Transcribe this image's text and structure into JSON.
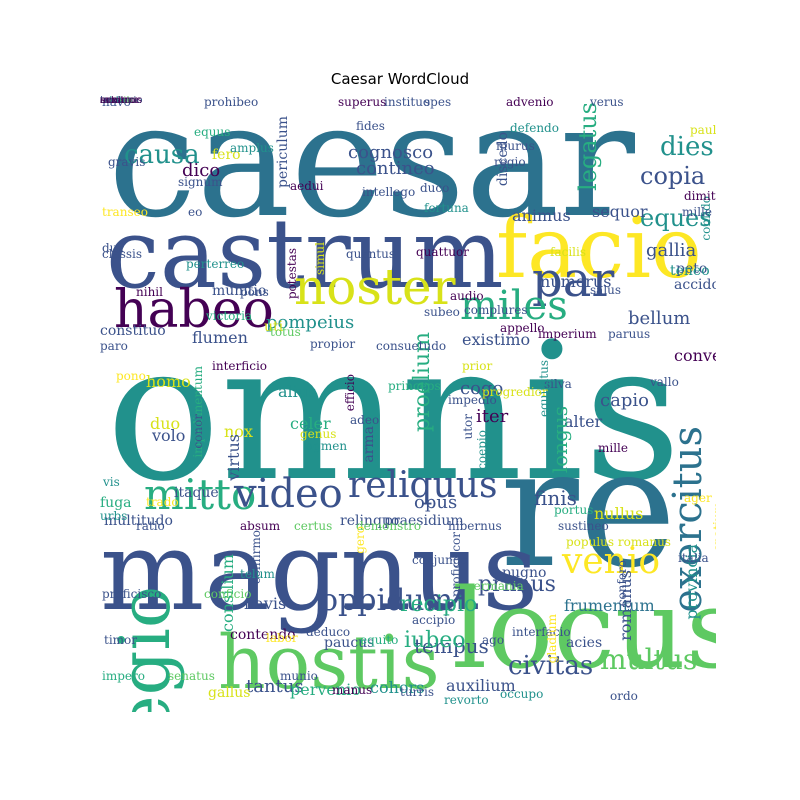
{
  "figure": {
    "title": "Caesar WordCloud"
  },
  "colors": {
    "c1": "#440154",
    "c2": "#3b528b",
    "c3": "#2c728e",
    "c4": "#21918c",
    "c5": "#27ad81",
    "c6": "#5ec962",
    "c7": "#d8e219",
    "c8": "#fde725"
  },
  "words": [
    {
      "text": "caesar",
      "color": "c3"
    },
    {
      "text": "omnis",
      "color": "c4"
    },
    {
      "text": "re",
      "color": "c3"
    },
    {
      "text": "magnus",
      "color": "c2"
    },
    {
      "text": "locus",
      "color": "c6"
    },
    {
      "text": "castrum",
      "color": "c2"
    },
    {
      "text": "facio",
      "color": "c8"
    },
    {
      "text": "hostis",
      "color": "c6"
    },
    {
      "text": "noster",
      "color": "c7"
    },
    {
      "text": "habeo",
      "color": "c1"
    },
    {
      "text": "par",
      "color": "c2"
    },
    {
      "text": "miles",
      "color": "c5"
    },
    {
      "text": "legio",
      "color": "c5"
    },
    {
      "text": "mitto",
      "color": "c5"
    },
    {
      "text": "video",
      "color": "c2"
    },
    {
      "text": "reliquus",
      "color": "c2"
    },
    {
      "text": "venio",
      "color": "c8"
    },
    {
      "text": "exercitus",
      "color": "c3"
    },
    {
      "text": "oppidum",
      "color": "c2"
    },
    {
      "text": "causa",
      "color": "c4"
    },
    {
      "text": "dies",
      "color": "c4"
    },
    {
      "text": "copia",
      "color": "c2"
    },
    {
      "text": "eques",
      "color": "c4"
    },
    {
      "text": "multus",
      "color": "c6"
    },
    {
      "text": "civitas",
      "color": "c2"
    },
    {
      "text": "legatus",
      "color": "c5"
    },
    {
      "text": "cognosco",
      "color": "c2"
    },
    {
      "text": "contineo",
      "color": "c2"
    },
    {
      "text": "gallia",
      "color": "c2"
    },
    {
      "text": "pompeius",
      "color": "c4"
    },
    {
      "text": "bellum",
      "color": "c2"
    },
    {
      "text": "iter",
      "color": "c1"
    },
    {
      "text": "opus",
      "color": "c2"
    },
    {
      "text": "cogo",
      "color": "c2"
    },
    {
      "text": "finis",
      "color": "c2"
    },
    {
      "text": "tempus",
      "color": "c2"
    },
    {
      "text": "primus",
      "color": "c2"
    },
    {
      "text": "recipio",
      "color": "c5"
    },
    {
      "text": "iubeo",
      "color": "c5"
    },
    {
      "text": "tantus",
      "color": "c2"
    },
    {
      "text": "auxilium",
      "color": "c2"
    },
    {
      "text": "cohors",
      "color": "c4"
    },
    {
      "text": "pervenio",
      "color": "c5"
    },
    {
      "text": "flumen",
      "color": "c2"
    },
    {
      "text": "homo",
      "color": "c7"
    },
    {
      "text": "duo",
      "color": "c7"
    },
    {
      "text": "volo",
      "color": "c2"
    },
    {
      "text": "alius",
      "color": "c4"
    },
    {
      "text": "nox",
      "color": "c7"
    },
    {
      "text": "celer",
      "color": "c5"
    },
    {
      "text": "alter",
      "color": "c2"
    },
    {
      "text": "capio",
      "color": "c2"
    },
    {
      "text": "nullus",
      "color": "c7"
    },
    {
      "text": "longus",
      "color": "c5"
    },
    {
      "text": "proelium",
      "color": "c5"
    },
    {
      "text": "existimo",
      "color": "c2"
    },
    {
      "text": "numerus",
      "color": "c2"
    },
    {
      "text": "animus",
      "color": "c2"
    },
    {
      "text": "sequor",
      "color": "c2"
    },
    {
      "text": "dico",
      "color": "c1"
    },
    {
      "text": "fero",
      "color": "c7"
    },
    {
      "text": "uti",
      "color": "c7"
    },
    {
      "text": "munitio",
      "color": "c2"
    },
    {
      "text": "constituo",
      "color": "c2"
    },
    {
      "text": "periculum",
      "color": "c2"
    },
    {
      "text": "discedo",
      "color": "c2"
    },
    {
      "text": "peto",
      "color": "c2"
    },
    {
      "text": "accido",
      "color": "c2"
    },
    {
      "text": "navis",
      "color": "c2"
    },
    {
      "text": "contendo",
      "color": "c1"
    },
    {
      "text": "paucus",
      "color": "c2"
    },
    {
      "text": "acies",
      "color": "c2"
    },
    {
      "text": "frumentum",
      "color": "c3"
    },
    {
      "text": "provincia",
      "color": "c4"
    },
    {
      "text": "romanus",
      "color": "c2"
    },
    {
      "text": "consilium",
      "color": "c5"
    },
    {
      "text": "gallus",
      "color": "c7"
    },
    {
      "text": "fuga",
      "color": "c5"
    },
    {
      "text": "multitudo",
      "color": "c2"
    },
    {
      "text": "relinquo",
      "color": "c2"
    },
    {
      "text": "praesidium",
      "color": "c2"
    },
    {
      "text": "pugno",
      "color": "c2"
    },
    {
      "text": "itaque",
      "color": "c2"
    },
    {
      "text": "virtus",
      "color": "c2"
    },
    {
      "text": "arma",
      "color": "c2"
    },
    {
      "text": "convenio",
      "color": "c1"
    },
    {
      "text": "teneo",
      "color": "c4"
    },
    {
      "text": "navo",
      "color": "c2"
    },
    {
      "text": "prohibeo",
      "color": "c2"
    },
    {
      "text": "superus",
      "color": "c1"
    },
    {
      "text": "instituo",
      "color": "c2"
    },
    {
      "text": "spes",
      "color": "c2"
    },
    {
      "text": "advenio",
      "color": "c1"
    },
    {
      "text": "verus",
      "color": "c2"
    },
    {
      "text": "equus",
      "color": "c5"
    },
    {
      "text": "fides",
      "color": "c2"
    },
    {
      "text": "defendo",
      "color": "c4"
    },
    {
      "text": "paulus",
      "color": "c7"
    },
    {
      "text": "murus",
      "color": "c2"
    },
    {
      "text": "amplus",
      "color": "c4"
    },
    {
      "text": "gravis",
      "color": "c2"
    },
    {
      "text": "regio",
      "color": "c2"
    },
    {
      "text": "signum",
      "color": "c2"
    },
    {
      "text": "aedui",
      "color": "c1"
    },
    {
      "text": "intellego",
      "color": "c2"
    },
    {
      "text": "duco",
      "color": "c2"
    },
    {
      "text": "fortuna",
      "color": "c4"
    },
    {
      "text": "confido",
      "color": "c4"
    },
    {
      "text": "dimitto",
      "color": "c1"
    },
    {
      "text": "transeo",
      "color": "c8"
    },
    {
      "text": "eo",
      "color": "c2"
    },
    {
      "text": "mille passus",
      "color": "c2"
    },
    {
      "text": "dux",
      "color": "c2"
    },
    {
      "text": "classis",
      "color": "c2"
    },
    {
      "text": "potestas",
      "color": "c1"
    },
    {
      "text": "simul",
      "color": "c7"
    },
    {
      "text": "quantus",
      "color": "c2"
    },
    {
      "text": "quattuor",
      "color": "c1"
    },
    {
      "text": "facilis",
      "color": "c7"
    },
    {
      "text": "perterreo",
      "color": "c4"
    },
    {
      "text": "nihil",
      "color": "c1"
    },
    {
      "text": "pons",
      "color": "c2"
    },
    {
      "text": "audio",
      "color": "c1"
    },
    {
      "text": "salus",
      "color": "c2"
    },
    {
      "text": "totus",
      "color": "c6"
    },
    {
      "text": "propior",
      "color": "c2"
    },
    {
      "text": "consuetudo",
      "color": "c2"
    },
    {
      "text": "subeo",
      "color": "c2"
    },
    {
      "text": "complures",
      "color": "c2"
    },
    {
      "text": "appello",
      "color": "c1"
    },
    {
      "text": "imperium",
      "color": "c1"
    },
    {
      "text": "paruus",
      "color": "c2"
    },
    {
      "text": "paro",
      "color": "c2"
    },
    {
      "text": "victoria",
      "color": "c5"
    },
    {
      "text": "interficio",
      "color": "c1"
    },
    {
      "text": "pono",
      "color": "c8"
    },
    {
      "text": "impedimentum",
      "color": "c5"
    },
    {
      "text": "efficio",
      "color": "c1"
    },
    {
      "text": "princeps",
      "color": "c5"
    },
    {
      "text": "prior",
      "color": "c7"
    },
    {
      "text": "impedio",
      "color": "c2"
    },
    {
      "text": "progredior",
      "color": "c7"
    },
    {
      "text": "silva",
      "color": "c2"
    },
    {
      "text": "equitatus",
      "color": "c4"
    },
    {
      "text": "genus",
      "color": "c7"
    },
    {
      "text": "adeo",
      "color": "c2"
    },
    {
      "text": "utor",
      "color": "c2"
    },
    {
      "text": "agmen",
      "color": "c4"
    },
    {
      "text": "coepio",
      "color": "c4"
    },
    {
      "text": "conor",
      "color": "c2"
    },
    {
      "text": "vallo",
      "color": "c2"
    },
    {
      "text": "mille",
      "color": "c1"
    },
    {
      "text": "vis",
      "color": "c4"
    },
    {
      "text": "trado",
      "color": "c8"
    },
    {
      "text": "ager",
      "color": "c8"
    },
    {
      "text": "spatium",
      "color": "c8"
    },
    {
      "text": "portus",
      "color": "c5"
    },
    {
      "text": "urbs",
      "color": "c4"
    },
    {
      "text": "ratio",
      "color": "c2"
    },
    {
      "text": "absum",
      "color": "c1"
    },
    {
      "text": "certus",
      "color": "c6"
    },
    {
      "text": "demonstro",
      "color": "c6"
    },
    {
      "text": "hibernus",
      "color": "c2"
    },
    {
      "text": "sustineo",
      "color": "c2"
    },
    {
      "text": "populus romanus",
      "color": "c7"
    },
    {
      "text": "italia",
      "color": "c2"
    },
    {
      "text": "confero",
      "color": "c2"
    },
    {
      "text": "confirmo",
      "color": "c2"
    },
    {
      "text": "gero",
      "color": "c8"
    },
    {
      "text": "proficiscor",
      "color": "c2"
    },
    {
      "text": "proficisco",
      "color": "c2"
    },
    {
      "text": "conficio",
      "color": "c6"
    },
    {
      "text": "telum",
      "color": "c4"
    },
    {
      "text": "conjungo",
      "color": "c2"
    },
    {
      "text": "germania",
      "color": "c6"
    },
    {
      "text": "timor",
      "color": "c2"
    },
    {
      "text": "labor",
      "color": "c8"
    },
    {
      "text": "deduco",
      "color": "c2"
    },
    {
      "text": "equito",
      "color": "c5"
    },
    {
      "text": "interfacio",
      "color": "c2"
    },
    {
      "text": "gladium",
      "color": "c8"
    },
    {
      "text": "accipio",
      "color": "c2"
    },
    {
      "text": "ago",
      "color": "c2"
    },
    {
      "text": "impero",
      "color": "c5"
    },
    {
      "text": "senatus",
      "color": "c6"
    },
    {
      "text": "munio",
      "color": "c2"
    },
    {
      "text": "manus",
      "color": "c1"
    },
    {
      "text": "turris",
      "color": "c2"
    },
    {
      "text": "revorto",
      "color": "c4"
    },
    {
      "text": "occupo",
      "color": "c4"
    },
    {
      "text": "ordo",
      "color": "c2"
    },
    {
      "text": "tueor",
      "color": "c2"
    },
    {
      "text": "confacio",
      "color": "c4"
    },
    {
      "text": "mons",
      "color": "c1"
    },
    {
      "text": "adduco",
      "color": "c4"
    },
    {
      "text": "consilo",
      "color": "c6"
    },
    {
      "text": "centurio",
      "color": "c2"
    },
    {
      "text": "arbitror",
      "color": "c1"
    },
    {
      "text": "summus",
      "color": "c1"
    }
  ]
}
